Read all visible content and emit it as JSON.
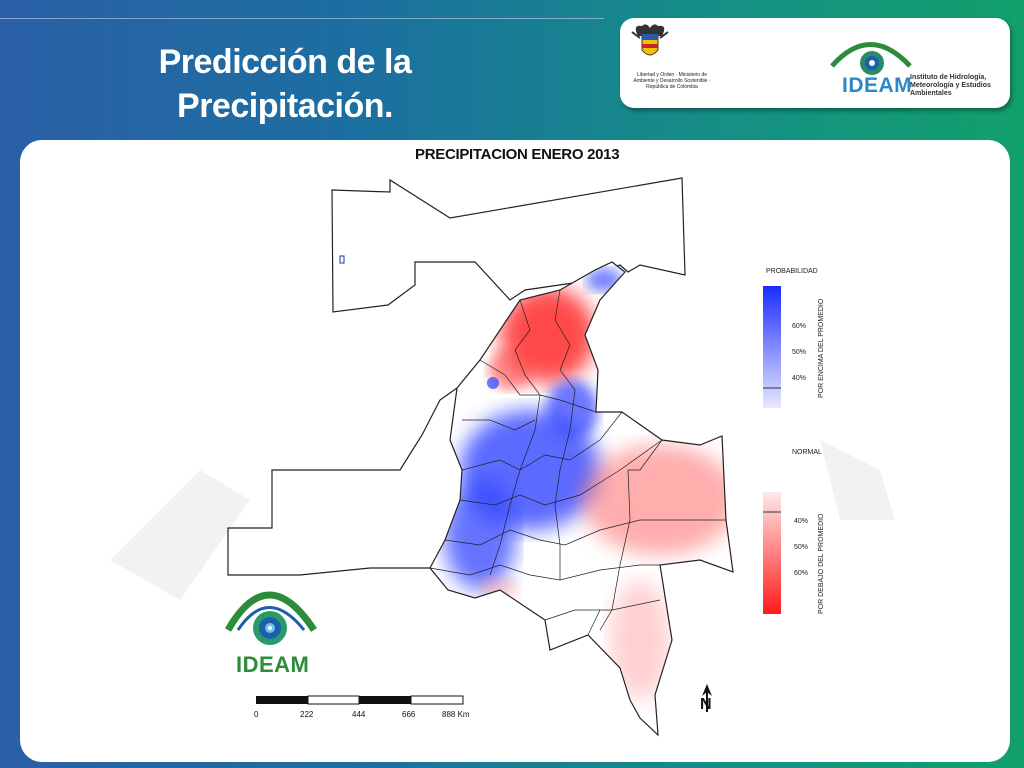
{
  "slide": {
    "title_line1": "Predicción de la",
    "title_line2": "Precipitación."
  },
  "header_logos": {
    "crest_caption": "Libertad y Orden · Ministerio de Ambiente y Desarrollo Sostenible · República de Colombia",
    "ideam_name": "IDEAM",
    "ideam_subtitle": "Instituto de Hidrología, Meteorología y Estudios Ambientales"
  },
  "map": {
    "title": "PRECIPITACION  ENERO 2013",
    "legend": {
      "above_header": "PROBABILIDAD",
      "above_label": "POR ENCIMA DEL PROMEDIO",
      "above_ticks": [
        "60%",
        "50%",
        "40%"
      ],
      "normal_header": "NORMAL",
      "below_label": "POR DEBAJO DEL PROMEDIO",
      "below_ticks": [
        "40%",
        "50%",
        "60%"
      ],
      "above_color": "#1a2cff",
      "below_color": "#ff1a1a"
    },
    "scale_bar": {
      "labels": [
        "0",
        "222",
        "444",
        "666",
        "888 Km"
      ]
    },
    "north_label": "N",
    "bottom_logo": "IDEAM"
  }
}
